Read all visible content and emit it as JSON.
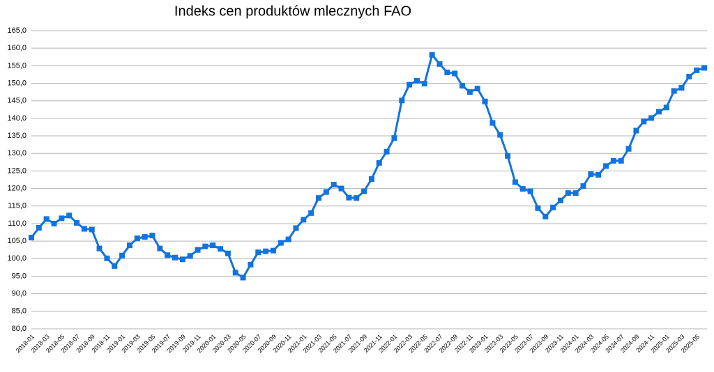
{
  "chart_data": {
    "type": "line",
    "title": "Indeks cen produktów mlecznych FAO",
    "categories": [
      "2018-01",
      null,
      "2018-03",
      null,
      "2018-05",
      null,
      "2018-07",
      null,
      "2018-09",
      null,
      "2018-11",
      null,
      "2019-01",
      null,
      "2019-03",
      null,
      "2019-05",
      null,
      "2019-07",
      null,
      "2019-09",
      null,
      "2019-11",
      null,
      "2020-01",
      null,
      "2020-03",
      null,
      "2020-05",
      null,
      "2020-07",
      null,
      "2020-09",
      null,
      "2020-11",
      null,
      "2021-01",
      null,
      "2021-03",
      null,
      "2021-05",
      null,
      "2021-07",
      null,
      "2021-09",
      null,
      "2021-11",
      null,
      "2022-01",
      null,
      "2022-03",
      null,
      "2022-05",
      null,
      "2022-07",
      null,
      "2022-09",
      null,
      "2022-11",
      null,
      "2023-01",
      null,
      "2023-03",
      null,
      "2023-05",
      null,
      "2023-07",
      null,
      "2023-09",
      null,
      "2023-11",
      null,
      "2024-01",
      null,
      "2024-03",
      null,
      "2024-05",
      null,
      "2024-07",
      null,
      "2024-09",
      null,
      "2024-11",
      null,
      "2025-01",
      null,
      "2025-03",
      null,
      "2025-05",
      null
    ],
    "values": [
      106.0,
      108.8,
      111.3,
      110.0,
      111.5,
      112.3,
      110.2,
      108.5,
      108.3,
      102.9,
      100.1,
      97.9,
      100.9,
      103.8,
      105.8,
      106.2,
      106.6,
      102.9,
      101.0,
      100.3,
      99.8,
      100.8,
      102.5,
      103.5,
      103.8,
      102.8,
      101.5,
      96.0,
      94.6,
      98.3,
      101.8,
      102.1,
      102.3,
      104.5,
      105.5,
      108.7,
      111.1,
      113.0,
      117.3,
      119.0,
      121.1,
      120.0,
      117.4,
      117.3,
      119.2,
      122.7,
      127.3,
      130.5,
      134.4,
      145.1,
      149.6,
      150.7,
      149.9,
      158.1,
      155.5,
      153.1,
      152.8,
      149.3,
      147.5,
      148.5,
      144.8,
      138.7,
      135.3,
      129.3,
      121.8,
      119.9,
      119.2,
      114.4,
      112.0,
      114.6,
      116.6,
      118.7,
      118.7,
      120.7,
      124.1,
      123.9,
      126.4,
      127.9,
      127.9,
      131.3,
      136.5,
      139.1,
      140.1,
      141.9,
      143.1,
      147.8,
      148.7,
      151.9,
      153.7,
      154.4
    ],
    "color": "#1273de",
    "ylim": [
      80,
      165
    ],
    "yticks": [
      {
        "value": 80,
        "label": "80,0"
      },
      {
        "value": 85,
        "label": "85,0"
      },
      {
        "value": 90,
        "label": "90,0"
      },
      {
        "value": 95,
        "label": "95,0"
      },
      {
        "value": 100,
        "label": "100,0"
      },
      {
        "value": 105,
        "label": "105,0"
      },
      {
        "value": 110,
        "label": "110,0"
      },
      {
        "value": 115,
        "label": "115,0"
      },
      {
        "value": 120,
        "label": "120,0"
      },
      {
        "value": 125,
        "label": "125,0"
      },
      {
        "value": 130,
        "label": "130,0"
      },
      {
        "value": 135,
        "label": "135,0"
      },
      {
        "value": 140,
        "label": "140,0"
      },
      {
        "value": 145,
        "label": "145,0"
      },
      {
        "value": 150,
        "label": "150,0"
      },
      {
        "value": 155,
        "label": "155,0"
      },
      {
        "value": 160,
        "label": "160,0"
      },
      {
        "value": 165,
        "label": "165,0"
      }
    ],
    "grid": true
  }
}
